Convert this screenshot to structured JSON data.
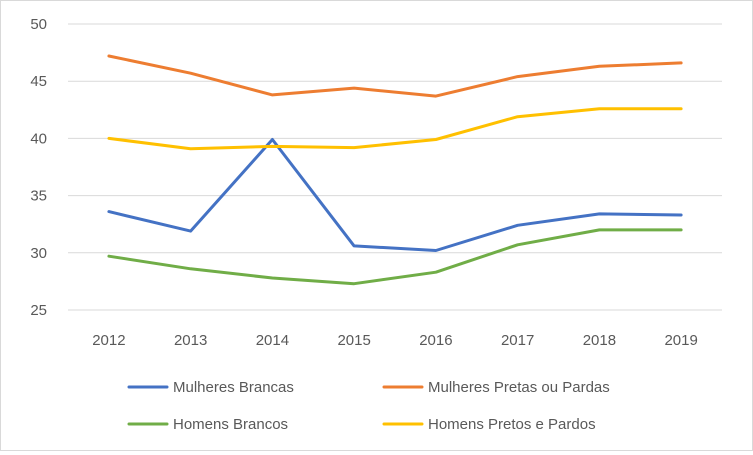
{
  "chart_data": {
    "type": "line",
    "title": "",
    "xlabel": "",
    "ylabel": "",
    "x": [
      "2012",
      "2013",
      "2014",
      "2015",
      "2016",
      "2017",
      "2018",
      "2019"
    ],
    "ylim": [
      25,
      50
    ],
    "yticks": [
      25,
      30,
      35,
      40,
      45,
      50
    ],
    "grid": true,
    "legend_position": "bottom",
    "series": [
      {
        "name": "Mulheres Brancas",
        "color": "#4472c4",
        "values": [
          33.6,
          31.9,
          39.9,
          30.6,
          30.2,
          32.4,
          33.4,
          33.3
        ]
      },
      {
        "name": "Mulheres Pretas ou Pardas",
        "color": "#ed7d31",
        "values": [
          47.2,
          45.7,
          43.8,
          44.4,
          43.7,
          45.4,
          46.3,
          46.6
        ]
      },
      {
        "name": "Homens Brancos",
        "color": "#70ad47",
        "values": [
          29.7,
          28.6,
          27.8,
          27.3,
          28.3,
          30.7,
          32.0,
          32.0
        ]
      },
      {
        "name": "Homens Pretos e Pardos",
        "color": "#ffc000",
        "values": [
          40.0,
          39.1,
          39.3,
          39.2,
          39.9,
          41.9,
          42.6,
          42.6
        ]
      }
    ]
  }
}
